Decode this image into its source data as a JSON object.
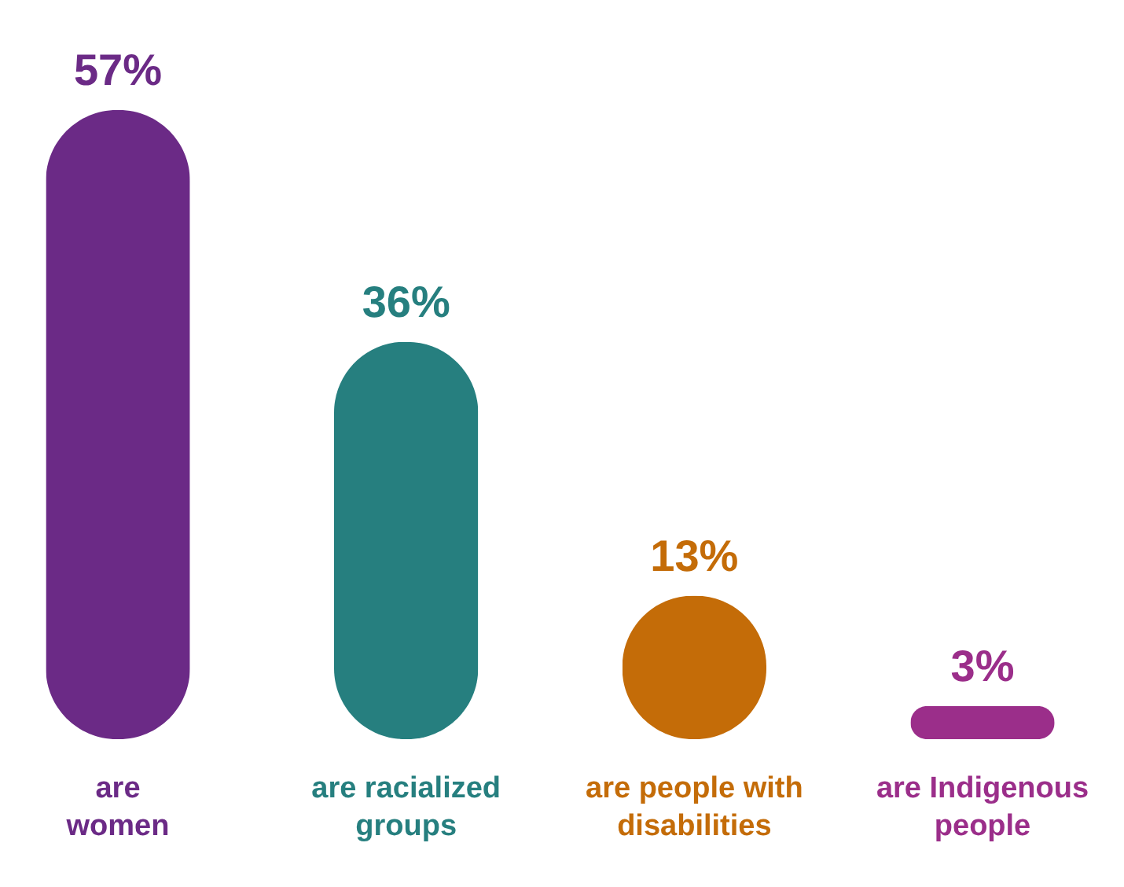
{
  "chart_data": {
    "type": "bar",
    "categories": [
      "are women",
      "are racialized groups",
      "are people with disabilities",
      "are Indigenous people"
    ],
    "values": [
      57,
      36,
      13,
      3
    ],
    "colors": [
      "#6b2a86",
      "#267f7f",
      "#c46c08",
      "#9b2e8a"
    ],
    "value_labels": [
      "57%",
      "36%",
      "13%",
      "3%"
    ],
    "legend": false
  }
}
